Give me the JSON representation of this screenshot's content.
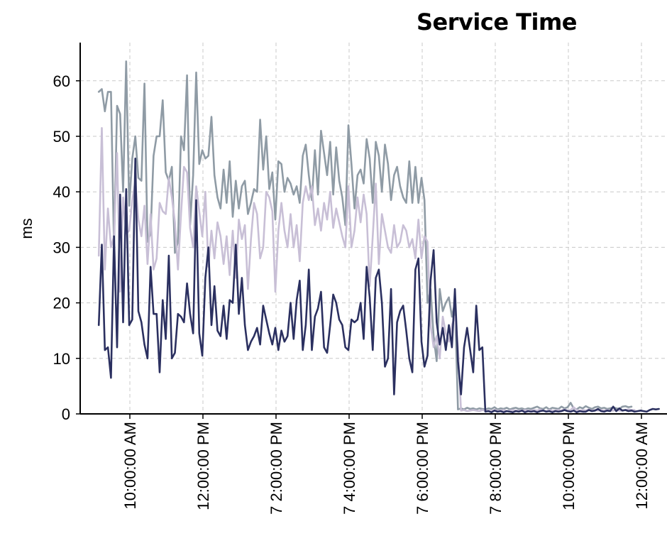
{
  "chart_data": {
    "type": "line",
    "title": "Service Time",
    "xlabel": "",
    "ylabel": "ms",
    "ylim": [
      0,
      66
    ],
    "yticks": [
      0,
      10,
      20,
      30,
      40,
      50,
      60
    ],
    "xlim": [
      -0.9,
      14.5
    ],
    "xticks": [
      {
        "x": 0,
        "label": "10:00:00 AM"
      },
      {
        "x": 2,
        "label": "12:00:00 PM"
      },
      {
        "x": 4,
        "label": "7 2:00:00 PM"
      },
      {
        "x": 6,
        "label": "7 4:00:00 PM"
      },
      {
        "x": 8,
        "label": "7 6:00:00 PM"
      },
      {
        "x": 10,
        "label": "7 8:00:00 PM"
      },
      {
        "x": 12,
        "label": "10:00:00 PM"
      },
      {
        "x": 14,
        "label": "12:00:00 AM"
      }
    ],
    "grid": true,
    "x_step_hours": 0.0833,
    "x_start": -0.85,
    "series": [
      {
        "color": "#8f9ba5",
        "values": [
          58,
          58.5,
          54.5,
          58,
          58,
          30,
          55.5,
          54,
          40,
          63.5,
          37.5,
          46,
          50,
          42.5,
          42,
          59.5,
          31,
          32.5,
          46.5,
          50,
          50,
          56.5,
          43.5,
          42,
          44.5,
          29,
          31,
          50,
          47.5,
          61,
          34,
          43,
          61.5,
          45,
          47.5,
          46,
          46.5,
          53.5,
          43,
          39,
          37,
          44,
          38,
          45.5,
          35.5,
          42,
          37,
          41,
          42,
          36,
          38,
          40.5,
          40,
          53,
          44,
          50,
          40.5,
          43.5,
          35,
          45.5,
          45,
          40,
          42.5,
          41.5,
          39.5,
          41,
          38,
          46.5,
          48.5,
          43,
          38.5,
          47.5,
          39.5,
          51,
          47,
          43,
          49,
          39.5,
          48,
          42,
          39,
          34,
          52,
          45,
          37,
          43,
          44,
          41.5,
          49.5,
          46,
          38,
          49,
          46.5,
          40,
          48.5,
          45,
          38.5,
          43,
          44.5,
          41,
          39,
          38,
          45.5,
          38,
          44.5,
          38,
          42.5,
          38.5,
          20,
          22.5,
          14,
          9.5,
          22.5,
          18.5,
          20,
          21,
          17.5,
          20,
          0.8,
          1.0,
          0.8,
          1.1,
          0.9,
          1.0,
          0.8,
          1.0,
          0.9,
          0.8,
          1.0,
          0.9,
          1.2,
          0.8,
          1.0,
          0.9,
          1.1,
          0.8,
          1.0,
          1.1,
          0.9,
          1.0,
          0.8,
          1.0,
          0.9,
          1.1,
          1.3,
          1.0,
          0.9,
          1.2,
          0.8,
          1.1,
          1.0,
          0.9,
          1.3,
          1.0,
          1.2,
          2.0,
          1.0,
          0.8,
          1.2,
          1.0,
          1.4,
          1.1,
          0.9,
          1.2,
          1.3,
          1.0,
          1.1,
          0.9,
          1.0,
          1.2,
          1.0,
          0.9,
          1.3,
          1.4,
          1.2,
          1.3
        ]
      },
      {
        "color": "#c8bfd6",
        "values": [
          28.5,
          51.5,
          26,
          37,
          30,
          32,
          47,
          22,
          39,
          32.5,
          33,
          38.5,
          42,
          35,
          32,
          37.5,
          27,
          36,
          26,
          28,
          38,
          36.5,
          36,
          42.5,
          39,
          34.5,
          26,
          36,
          44.5,
          43.5,
          33.5,
          30,
          41,
          36.5,
          32,
          40,
          26.5,
          33,
          28,
          34.5,
          32,
          27,
          32,
          25,
          33,
          24.5,
          35,
          31.5,
          34,
          22.5,
          31.5,
          38,
          36,
          28,
          30,
          40,
          39,
          36.5,
          22,
          33,
          38,
          33,
          30,
          36,
          30,
          34,
          27.5,
          38,
          41,
          38.5,
          41,
          34,
          37,
          33,
          38,
          35,
          40,
          33.5,
          37,
          34.5,
          32,
          30,
          41,
          30,
          33,
          39,
          34.5,
          39.5,
          36,
          23,
          32,
          41.5,
          27,
          36,
          33,
          30,
          29,
          34,
          30,
          31,
          34,
          33,
          30,
          31.5,
          28,
          35,
          28,
          32,
          31,
          16,
          12,
          14,
          10,
          17.5,
          14.5,
          13,
          16,
          17.5,
          12,
          0.6,
          0.7,
          0.5,
          0.6,
          0.7,
          0.6,
          0.5,
          0.7,
          0.6,
          0.6,
          0.5,
          0.7,
          0.6,
          0.6,
          0.7,
          0.5,
          0.6,
          0.7,
          0.6,
          0.6,
          0.5,
          0.7,
          0.6,
          0.6,
          0.7,
          0.6,
          0.8,
          0.6,
          0.5,
          0.7,
          0.6,
          0.6,
          0.7,
          0.6,
          0.8,
          0.6,
          0.7,
          1.2,
          0.7,
          0.6,
          0.7,
          0.6,
          0.8,
          0.6,
          0.7,
          0.6,
          0.7,
          0.6,
          0.7,
          0.6,
          0.6,
          0.7,
          0.6,
          0.6,
          0.7,
          0.8,
          0.7,
          0.7
        ]
      },
      {
        "color": "#2b3060",
        "values": [
          16,
          30.5,
          11.5,
          12,
          6.5,
          32,
          12,
          39.5,
          16.5,
          40.5,
          16,
          17,
          46,
          18.5,
          16.5,
          12.5,
          10,
          26.5,
          18,
          18,
          7.5,
          20.5,
          13.5,
          28.5,
          10,
          11,
          18,
          17.5,
          16.5,
          23.5,
          18,
          14.5,
          38.5,
          14.5,
          10.5,
          24.5,
          30,
          16,
          23,
          15,
          14,
          19.5,
          13.5,
          20.5,
          20,
          30.5,
          18,
          24.5,
          16,
          11.5,
          13,
          14,
          15.5,
          12.5,
          19.5,
          17,
          14.5,
          12.5,
          15.5,
          11.5,
          15,
          13,
          14,
          20,
          13.5,
          20.5,
          24,
          11.5,
          16,
          26,
          11.5,
          17.5,
          19,
          22,
          12,
          11,
          16,
          21.5,
          20,
          17,
          16,
          12,
          11.5,
          17,
          16.5,
          17,
          20,
          13.5,
          26.5,
          21,
          11.5,
          24.5,
          26,
          20,
          8.5,
          10,
          22.5,
          3.5,
          16.5,
          18.5,
          19.5,
          15,
          10,
          7.5,
          26,
          28,
          13,
          8.5,
          10.5,
          24,
          29.5,
          16.5,
          12.5,
          15.5,
          11.5,
          16,
          12,
          22.5,
          9.5,
          3.5,
          12,
          15.5,
          11.5,
          7.5,
          19.5,
          11.5,
          12,
          0.4,
          0.5,
          0.3,
          0.6,
          0.4,
          0.5,
          0.3,
          0.5,
          0.4,
          0.3,
          0.5,
          0.4,
          0.6,
          0.3,
          0.5,
          0.4,
          0.5,
          0.3,
          0.5,
          0.6,
          0.4,
          0.5,
          0.3,
          0.5,
          0.4,
          0.5,
          0.7,
          0.5,
          0.4,
          0.6,
          0.3,
          0.5,
          0.4,
          0.4,
          0.7,
          0.5,
          0.6,
          0.9,
          0.5,
          0.4,
          0.6,
          0.5,
          1.3,
          0.5,
          1.0,
          0.6,
          0.7,
          0.5,
          0.6,
          0.4,
          0.5,
          0.6,
          0.5,
          0.4,
          0.7,
          0.9,
          0.8,
          0.9
        ]
      }
    ]
  }
}
